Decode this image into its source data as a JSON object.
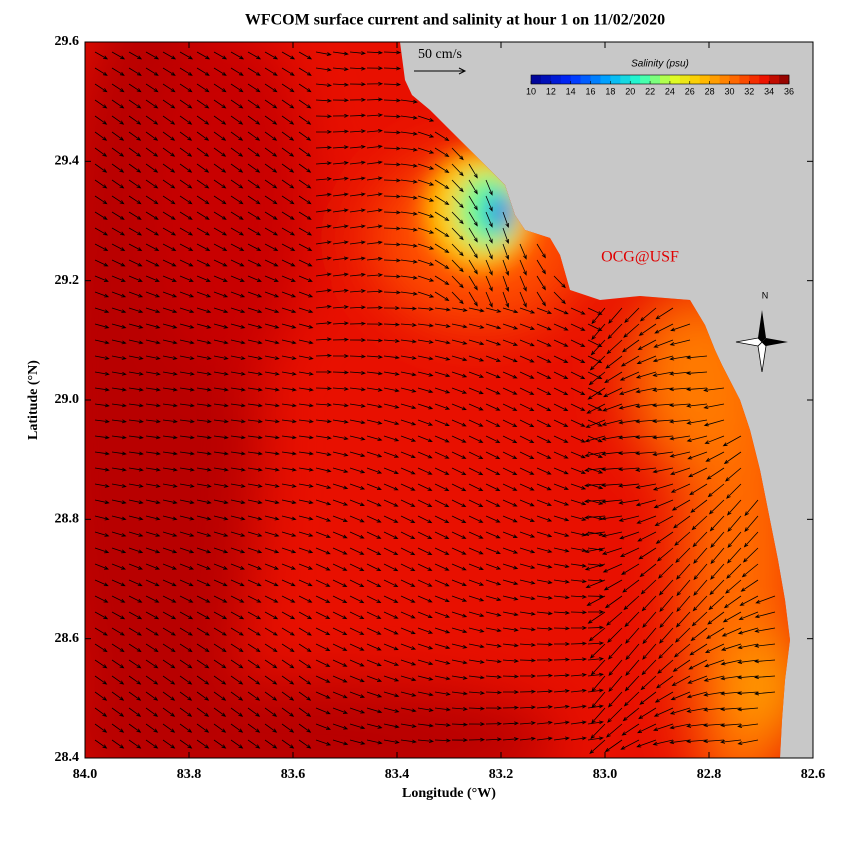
{
  "title": "WFCOM surface current and salinity at hour 1 on 11/02/2020",
  "x_axis": {
    "label": "Longitude (°W)",
    "lim": [
      84,
      82.6
    ],
    "ticks": [
      {
        "value": 84,
        "label": "84.0"
      },
      83.8,
      83.6,
      83.4,
      83.2,
      {
        "value": 83,
        "label": "83.0"
      },
      82.8,
      82.6
    ]
  },
  "y_axis": {
    "label": "Latitude (°N)",
    "lim": [
      28.4,
      29.6
    ],
    "ticks": [
      28.4,
      28.6,
      28.8,
      {
        "value": 29,
        "label": "29.0"
      },
      29.2,
      29.4,
      29.6
    ]
  },
  "colorbar": {
    "title": "Salinity (psu)",
    "lim": [
      10,
      36
    ],
    "ticks": [
      10,
      12,
      14,
      16,
      18,
      20,
      22,
      24,
      26,
      28,
      30,
      32,
      34,
      36
    ]
  },
  "scale_label": "50 cm/s",
  "watermark": "OCG@USF",
  "compass": "N"
}
